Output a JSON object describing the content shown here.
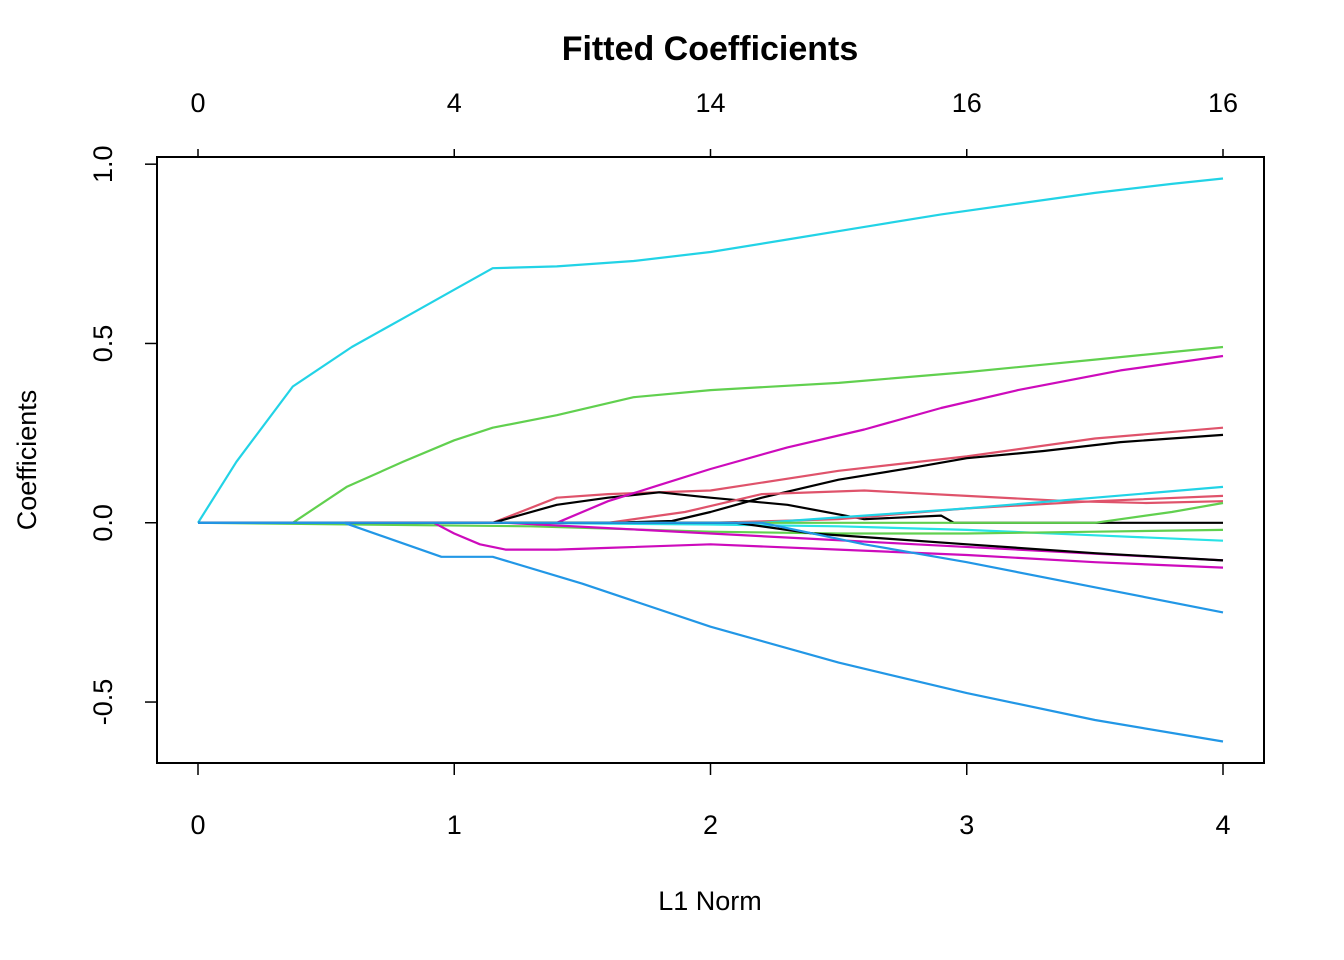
{
  "chart_data": {
    "type": "line",
    "title": "Fitted Coefficients",
    "xlabel": "L1 Norm",
    "ylabel": "Coefficients",
    "xlim": [
      -0.16,
      4.16
    ],
    "ylim": [
      -0.67,
      1.02
    ],
    "x_ticks": [
      0,
      1,
      2,
      3,
      4
    ],
    "x_tick_labels": [
      "0",
      "1",
      "2",
      "3",
      "4"
    ],
    "y_ticks": [
      -0.5,
      0.0,
      0.5,
      1.0
    ],
    "y_tick_labels": [
      "-0.5",
      "0.0",
      "0.5",
      "1.0"
    ],
    "top_axis": {
      "ticks": [
        0,
        1,
        2,
        3,
        4
      ],
      "labels": [
        "0",
        "4",
        "14",
        "16",
        "16"
      ]
    },
    "grid": false,
    "legend": "none",
    "series": [
      {
        "color": "#22d3e6",
        "x": [
          0,
          0.15,
          0.37,
          0.6,
          0.8,
          1.0,
          1.15,
          1.4,
          1.7,
          2.0,
          2.3,
          2.6,
          2.9,
          3.2,
          3.5,
          3.8,
          4.0
        ],
        "y": [
          0,
          0.17,
          0.38,
          0.49,
          0.57,
          0.65,
          0.71,
          0.715,
          0.73,
          0.755,
          0.79,
          0.825,
          0.86,
          0.89,
          0.92,
          0.945,
          0.96
        ]
      },
      {
        "color": "#61d04f",
        "x": [
          0,
          0.37,
          0.58,
          0.8,
          1.0,
          1.15,
          1.4,
          1.7,
          2.0,
          2.5,
          3.0,
          3.5,
          4.0
        ],
        "y": [
          0,
          0,
          0.1,
          0.17,
          0.23,
          0.265,
          0.3,
          0.35,
          0.37,
          0.39,
          0.42,
          0.455,
          0.49
        ]
      },
      {
        "color": "#df536b",
        "x": [
          0,
          1.15,
          1.4,
          1.6,
          2.0,
          2.5,
          3.0,
          3.5,
          4.0
        ],
        "y": [
          0,
          0,
          0.07,
          0.08,
          0.09,
          0.145,
          0.185,
          0.235,
          0.265
        ]
      },
      {
        "color": "#000000",
        "x": [
          0,
          1.15,
          1.4,
          1.6,
          1.8,
          2.0,
          2.3,
          2.6,
          2.9,
          2.95,
          3.3,
          3.6,
          4.0
        ],
        "y": [
          0,
          0,
          0.05,
          0.07,
          0.085,
          0.07,
          0.05,
          0.01,
          0.02,
          0,
          0,
          0,
          0
        ]
      },
      {
        "color": "#cd0bbc",
        "x": [
          0,
          1.4,
          1.6,
          1.8,
          2.0,
          2.3,
          2.6,
          2.9,
          3.2,
          3.6,
          4.0
        ],
        "y": [
          0,
          0,
          0.06,
          0.105,
          0.15,
          0.21,
          0.26,
          0.32,
          0.37,
          0.425,
          0.465
        ]
      },
      {
        "color": "#000000",
        "x": [
          0,
          1.6,
          1.85,
          2.0,
          2.2,
          2.5,
          2.8,
          3.0,
          3.3,
          3.6,
          4.0
        ],
        "y": [
          0,
          0,
          0.005,
          0.03,
          0.07,
          0.12,
          0.155,
          0.18,
          0.2,
          0.225,
          0.245
        ]
      },
      {
        "color": "#df536b",
        "x": [
          0,
          1.6,
          1.9,
          2.2,
          2.6,
          3.0,
          3.4,
          3.7,
          4.0
        ],
        "y": [
          0,
          0,
          0.03,
          0.08,
          0.09,
          0.075,
          0.06,
          0.055,
          0.06
        ]
      },
      {
        "color": "#df536b",
        "x": [
          0,
          2.0,
          2.5,
          3.0,
          3.5,
          4.0
        ],
        "y": [
          0,
          0,
          0.01,
          0.04,
          0.06,
          0.075
        ]
      },
      {
        "color": "#22d3e6",
        "x": [
          0,
          2.2,
          2.6,
          3.0,
          3.5,
          4.0
        ],
        "y": [
          0,
          0,
          0.02,
          0.04,
          0.07,
          0.1
        ]
      },
      {
        "color": "#61d04f",
        "x": [
          0,
          3.5,
          3.8,
          4.0
        ],
        "y": [
          0,
          0,
          0.03,
          0.055
        ]
      },
      {
        "color": "#28e2e5",
        "x": [
          0,
          1.2,
          2.0,
          2.5,
          3.0,
          3.5,
          4.0
        ],
        "y": [
          0,
          0,
          -0.005,
          -0.01,
          -0.02,
          -0.035,
          -0.05
        ]
      },
      {
        "color": "#61d04f",
        "x": [
          0,
          1.3,
          2.0,
          2.5,
          3.0,
          3.5,
          4.0
        ],
        "y": [
          0,
          -0.01,
          -0.025,
          -0.03,
          -0.03,
          -0.025,
          -0.02
        ]
      },
      {
        "color": "#cd0bbc",
        "x": [
          0,
          0.92,
          1.0,
          1.1,
          1.2,
          1.4,
          1.6,
          2.0,
          2.5,
          3.0,
          3.5,
          4.0
        ],
        "y": [
          0,
          0,
          -0.03,
          -0.06,
          -0.075,
          -0.075,
          -0.07,
          -0.06,
          -0.075,
          -0.09,
          -0.11,
          -0.125
        ]
      },
      {
        "color": "#cd0bbc",
        "x": [
          0,
          1.2,
          1.6,
          2.0,
          2.4,
          2.8,
          3.2,
          3.6,
          4.0
        ],
        "y": [
          0,
          0,
          -0.015,
          -0.03,
          -0.045,
          -0.06,
          -0.075,
          -0.09,
          -0.105
        ]
      },
      {
        "color": "#000000",
        "x": [
          0,
          2.1,
          2.4,
          2.7,
          3.0,
          3.5,
          4.0
        ],
        "y": [
          0,
          0,
          -0.03,
          -0.045,
          -0.06,
          -0.085,
          -0.105
        ]
      },
      {
        "color": "#2297e6",
        "x": [
          0,
          2.2,
          2.6,
          3.0,
          3.5,
          4.0
        ],
        "y": [
          0,
          0,
          -0.06,
          -0.11,
          -0.18,
          -0.25
        ]
      },
      {
        "color": "#2297e6",
        "x": [
          0,
          0.57,
          0.95,
          1.15,
          1.5,
          2.0,
          2.5,
          3.0,
          3.5,
          4.0
        ],
        "y": [
          0,
          0,
          -0.095,
          -0.095,
          -0.17,
          -0.29,
          -0.39,
          -0.475,
          -0.55,
          -0.61
        ]
      }
    ]
  }
}
